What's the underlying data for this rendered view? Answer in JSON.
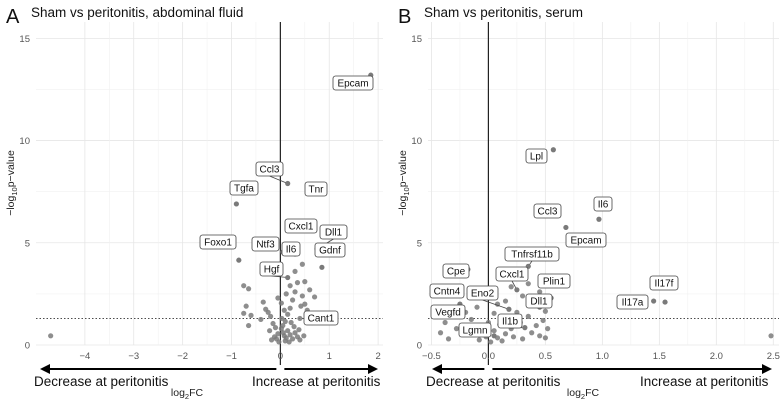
{
  "chart_data": [
    {
      "type": "scatter",
      "panel_letter": "A",
      "title": "Sham vs peritonitis, abdominal fluid",
      "xlabel": "log2FC",
      "ylabel": "−log10p−value",
      "xlim": [
        -5,
        2.1
      ],
      "ylim": [
        0,
        15.8
      ],
      "xticks": [
        -4,
        -3,
        -2,
        -1,
        0,
        1,
        2
      ],
      "yticks": [
        0,
        5,
        10,
        15
      ],
      "threshold_y": 1.3,
      "decrease_label": "Decrease at peritonitis",
      "increase_label": "Increase at peritonitis",
      "labeled_points": [
        {
          "gene": "Epcam",
          "x": 1.85,
          "y": 13.2
        },
        {
          "gene": "Ccl3",
          "x": 0.15,
          "y": 7.9
        },
        {
          "gene": "Tnr",
          "x": 0.65,
          "y": 7.85
        },
        {
          "gene": "Tgfa",
          "x": -0.9,
          "y": 6.9
        },
        {
          "gene": "Cxcl1",
          "x": 0.35,
          "y": 6.0
        },
        {
          "gene": "Dll1",
          "x": 0.75,
          "y": 4.7
        },
        {
          "gene": "Foxo1",
          "x": -0.85,
          "y": 4.15
        },
        {
          "gene": "Ntf3",
          "x": 0.05,
          "y": 4.55
        },
        {
          "gene": "Il6",
          "x": 0.3,
          "y": 4.45
        },
        {
          "gene": "Gdnf",
          "x": 0.85,
          "y": 3.8
        },
        {
          "gene": "Hgf",
          "x": 0.15,
          "y": 3.3
        },
        {
          "gene": "Cant1",
          "x": 0.75,
          "y": 1.4
        }
      ],
      "points": [
        [
          -4.7,
          0.45
        ],
        [
          -0.75,
          2.9
        ],
        [
          -0.65,
          2.75
        ],
        [
          -0.7,
          1.9
        ],
        [
          -0.6,
          1.45
        ],
        [
          -0.75,
          1.55
        ],
        [
          -0.65,
          0.95
        ],
        [
          -0.35,
          2.1
        ],
        [
          -0.3,
          1.75
        ],
        [
          -0.25,
          1.6
        ],
        [
          -0.2,
          1.4
        ],
        [
          -0.4,
          1.25
        ],
        [
          -0.15,
          1.05
        ],
        [
          -0.1,
          0.85
        ],
        [
          -0.22,
          0.7
        ],
        [
          -0.05,
          0.55
        ],
        [
          -0.12,
          0.4
        ],
        [
          -0.18,
          0.25
        ],
        [
          -0.03,
          0.15
        ],
        [
          -0.08,
          0.3
        ],
        [
          0.02,
          0.8
        ],
        [
          0.06,
          0.6
        ],
        [
          0.08,
          0.45
        ],
        [
          0.1,
          0.2
        ],
        [
          0.12,
          0.35
        ],
        [
          0.05,
          0.95
        ],
        [
          0.15,
          0.7
        ],
        [
          0.2,
          0.5
        ],
        [
          0.25,
          0.3
        ],
        [
          0.18,
          0.15
        ],
        [
          0.3,
          0.6
        ],
        [
          0.35,
          0.4
        ],
        [
          0.28,
          0.9
        ],
        [
          0.4,
          0.25
        ],
        [
          0.1,
          1.15
        ],
        [
          0.15,
          1.5
        ],
        [
          0.2,
          1.8
        ],
        [
          0.25,
          2.2
        ],
        [
          0.3,
          2.6
        ],
        [
          0.2,
          2.9
        ],
        [
          0.35,
          3.05
        ],
        [
          0.45,
          2.4
        ],
        [
          0.5,
          2.0
        ],
        [
          0.6,
          2.7
        ],
        [
          0.55,
          1.7
        ],
        [
          0.4,
          1.3
        ],
        [
          0.65,
          1.1
        ],
        [
          0.7,
          2.35
        ],
        [
          0.5,
          3.1
        ],
        [
          0.3,
          3.6
        ],
        [
          0.45,
          3.95
        ],
        [
          0.12,
          2.5
        ],
        [
          0.08,
          1.7
        ],
        [
          -0.05,
          2.3
        ],
        [
          0.02,
          2.05
        ],
        [
          0.22,
          1.1
        ],
        [
          0.38,
          0.75
        ],
        [
          0.48,
          0.45
        ],
        [
          0.03,
          1.3
        ],
        [
          0.42,
          1.9
        ]
      ]
    },
    {
      "type": "scatter",
      "panel_letter": "B",
      "title": "Sham vs peritonitis, serum",
      "xlabel": "log2FC",
      "ylabel": "−log10p−value",
      "xlim": [
        -0.53,
        2.55
      ],
      "ylim": [
        0,
        15.8
      ],
      "xticks": [
        -0.5,
        0.0,
        0.5,
        1.0,
        1.5,
        2.0,
        2.5
      ],
      "yticks": [
        0,
        5,
        10,
        15
      ],
      "threshold_y": 1.3,
      "decrease_label": "Decrease at peritonitis",
      "increase_label": "Increase at peritonitis",
      "labeled_points": [
        {
          "gene": "Lpl",
          "x": 0.57,
          "y": 9.55
        },
        {
          "gene": "Il6",
          "x": 0.97,
          "y": 6.15
        },
        {
          "gene": "Ccl3",
          "x": 0.68,
          "y": 5.75
        },
        {
          "gene": "Epcam",
          "x": 0.8,
          "y": 5.25
        },
        {
          "gene": "Tnfrsf11b",
          "x": 0.35,
          "y": 3.85
        },
        {
          "gene": "Cpe",
          "x": -0.18,
          "y": 3.7
        },
        {
          "gene": "Cxcl1",
          "x": 0.25,
          "y": 2.7
        },
        {
          "gene": "Plin1",
          "x": 0.55,
          "y": 2.3
        },
        {
          "gene": "Il17f",
          "x": 1.55,
          "y": 2.1
        },
        {
          "gene": "Il17a",
          "x": 1.45,
          "y": 2.15
        },
        {
          "gene": "Cntn4",
          "x": -0.25,
          "y": 2.0
        },
        {
          "gene": "Eno2",
          "x": 0.18,
          "y": 1.75
        },
        {
          "gene": "Dll1",
          "x": 0.45,
          "y": 1.85
        },
        {
          "gene": "Vegfd",
          "x": -0.22,
          "y": 0.85
        },
        {
          "gene": "Il1b",
          "x": 0.32,
          "y": 0.85
        },
        {
          "gene": "Lgmn",
          "x": 0.05,
          "y": 0.45
        }
      ],
      "points": [
        [
          2.48,
          0.45
        ],
        [
          -0.42,
          0.6
        ],
        [
          -0.38,
          1.1
        ],
        [
          -0.3,
          1.45
        ],
        [
          -0.35,
          0.3
        ],
        [
          -0.28,
          0.8
        ],
        [
          -0.2,
          1.6
        ],
        [
          -0.15,
          1.25
        ],
        [
          -0.12,
          0.55
        ],
        [
          -0.08,
          0.25
        ],
        [
          -0.05,
          0.9
        ],
        [
          -0.02,
          0.4
        ],
        [
          0.02,
          0.15
        ],
        [
          0.05,
          0.7
        ],
        [
          0.08,
          0.35
        ],
        [
          0.1,
          1.0
        ],
        [
          0.12,
          0.2
        ],
        [
          0.15,
          0.55
        ],
        [
          0.18,
          1.3
        ],
        [
          0.2,
          0.8
        ],
        [
          0.22,
          0.4
        ],
        [
          0.25,
          1.6
        ],
        [
          0.28,
          1.1
        ],
        [
          0.3,
          0.3
        ],
        [
          0.35,
          1.4
        ],
        [
          0.38,
          0.6
        ],
        [
          0.4,
          2.0
        ],
        [
          0.42,
          0.95
        ],
        [
          0.45,
          0.45
        ],
        [
          0.48,
          1.2
        ],
        [
          0.5,
          0.35
        ],
        [
          0.52,
          0.8
        ],
        [
          0.15,
          2.15
        ],
        [
          0.3,
          2.4
        ],
        [
          0.35,
          3.0
        ],
        [
          0.05,
          1.55
        ],
        [
          -0.1,
          1.85
        ],
        [
          0.0,
          1.1
        ],
        [
          0.08,
          2.0
        ],
        [
          0.2,
          2.85
        ],
        [
          0.45,
          2.6
        ],
        [
          0.5,
          1.65
        ]
      ]
    }
  ]
}
